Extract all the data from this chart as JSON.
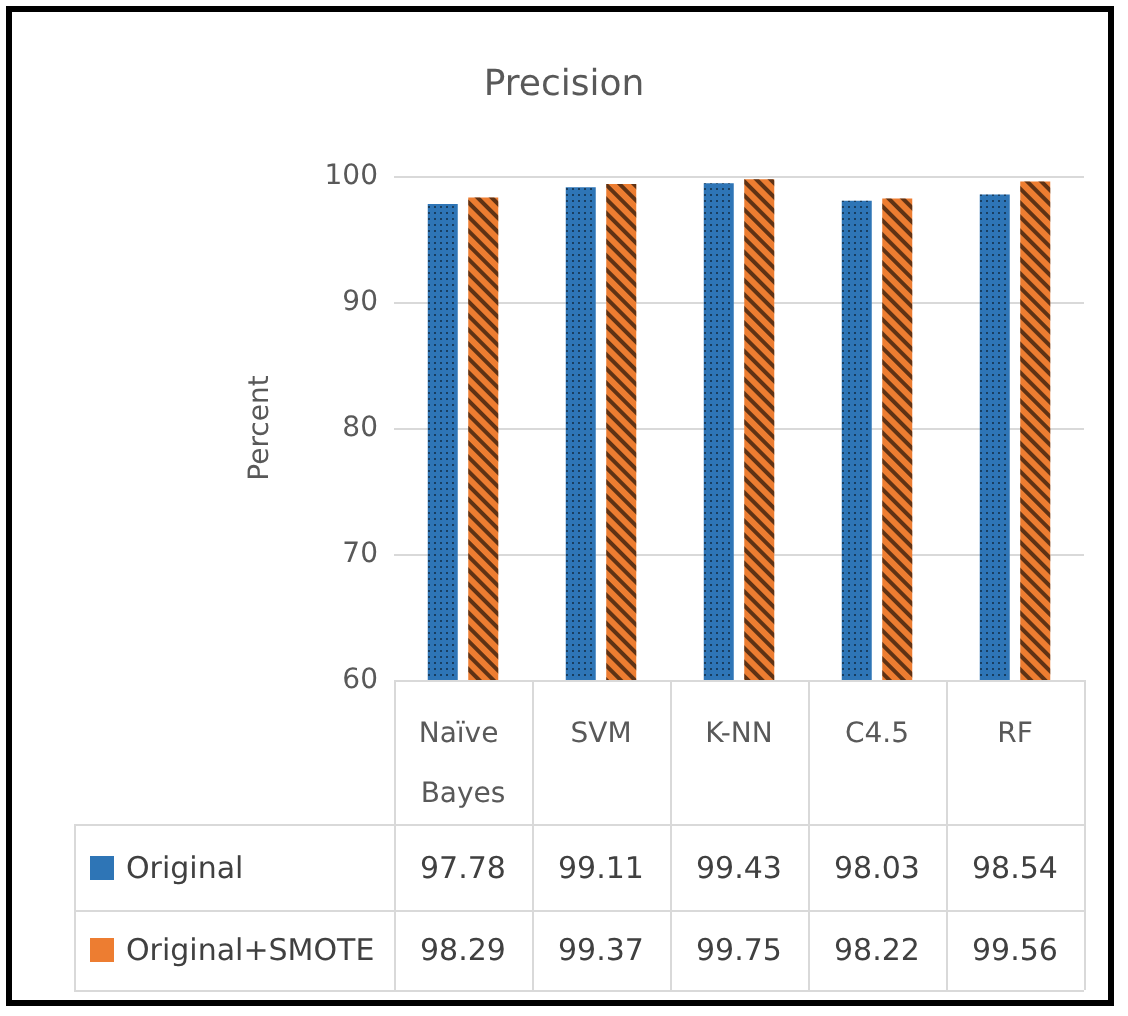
{
  "chart_data": {
    "type": "bar",
    "title": "Precision",
    "ylabel": "Percent",
    "categories": [
      "Naïve Bayes",
      "SVM",
      "K-NN",
      "C4.5",
      "RF"
    ],
    "series": [
      {
        "name": "Original",
        "color": "#2e75b6",
        "values": [
          97.78,
          99.11,
          99.43,
          98.03,
          98.54
        ]
      },
      {
        "name": "Original+SMOTE",
        "color": "#ed7d31",
        "values": [
          98.29,
          99.37,
          99.75,
          98.22,
          99.56
        ]
      }
    ],
    "ylim": [
      60,
      100
    ],
    "yticks": [
      60,
      70,
      80,
      90,
      100
    ],
    "grid": "y",
    "legend": "bottom",
    "data_labels": true
  }
}
